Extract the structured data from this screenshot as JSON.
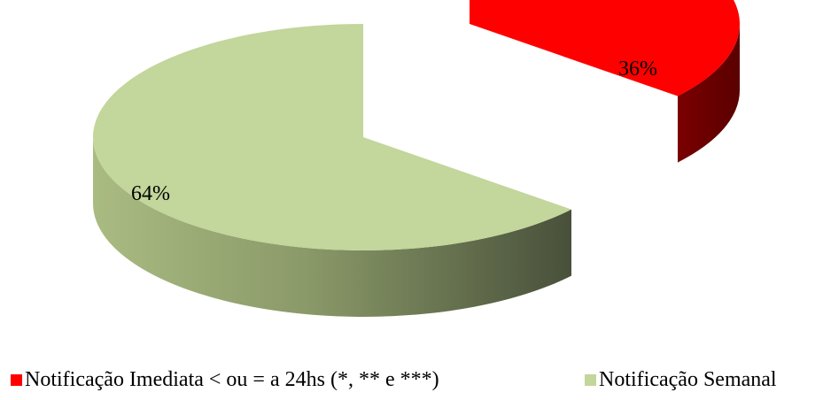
{
  "chart_data": {
    "type": "pie",
    "title": "",
    "series": [
      {
        "values": [
          36,
          64
        ],
        "labels": [
          "36%",
          "64%"
        ]
      }
    ],
    "categories": [
      "Notificação Imediata < ou = a 24hs (*, ** e ***)",
      "Notificação Semanal"
    ],
    "colors": [
      "#ff0000",
      "#c3d69b"
    ],
    "exploded": true,
    "style": "3d",
    "legend": "bottom"
  },
  "legend": {
    "items": [
      {
        "label": "Notificação Imediata < ou = a 24hs (*, ** e ***)",
        "color": "#ff0000"
      },
      {
        "label": "Notificação Semanal",
        "color": "#c3d69b"
      }
    ]
  }
}
